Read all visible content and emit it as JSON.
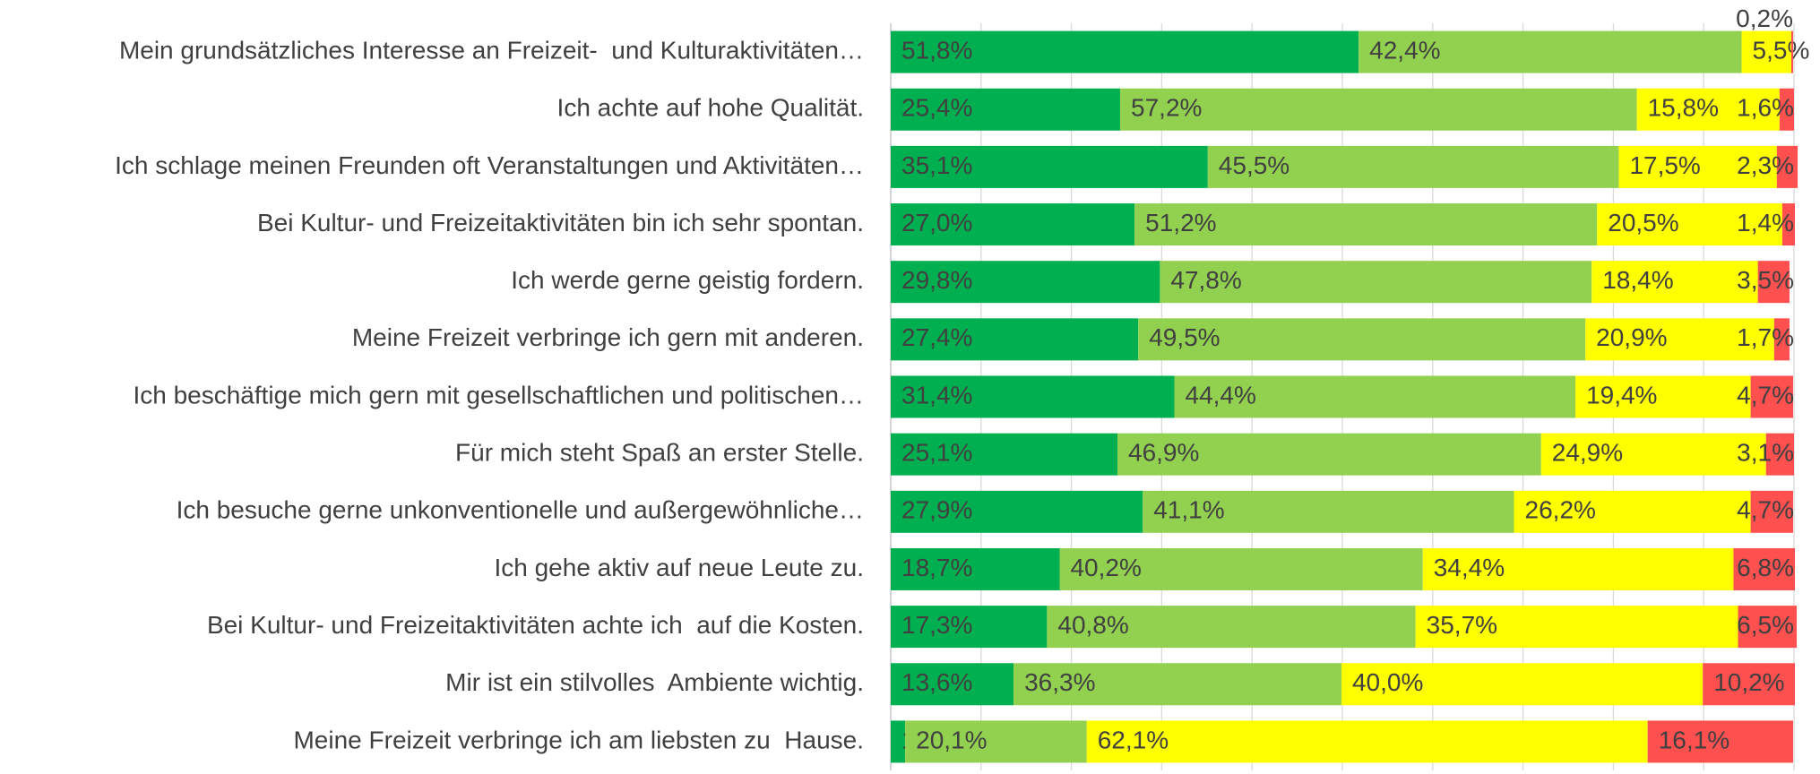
{
  "chart_data": {
    "type": "stacked-barh",
    "categories": [
      "Mein grundsätzliches Interesse an Freizeit-  und Kulturaktivitäten…",
      "Ich achte auf hohe Qualität.",
      "Ich schlage meinen Freunden oft Veranstaltungen und Aktivitäten…",
      "Bei Kultur- und Freizeitaktivitäten bin ich sehr spontan.",
      "Ich werde gerne geistig fordern.",
      "Meine Freizeit verbringe ich gern mit anderen.",
      "Ich beschäftige mich gern mit gesellschaftlichen und politischen…",
      "Für mich steht Spaß an erster Stelle.",
      "Ich besuche gerne unkonventionelle und außergewöhnliche…",
      "Ich gehe aktiv auf neue Leute zu.",
      "Bei Kultur- und Freizeitaktivitäten achte ich  auf die Kosten.",
      "Mir ist ein stilvolles  Ambiente wichtig.",
      "Meine Freizeit verbringe ich am liebsten zu  Hause."
    ],
    "series": [
      {
        "color": "#00b050",
        "values": [
          51.8,
          25.4,
          35.1,
          27.0,
          29.8,
          27.4,
          31.4,
          25.1,
          27.9,
          18.7,
          17.3,
          13.6,
          1.6
        ],
        "value_labels": [
          "51,8%",
          "25,4%",
          "35,1%",
          "27,0%",
          "29,8%",
          "27,4%",
          "31,4%",
          "25,1%",
          "27,9%",
          "18,7%",
          "17,3%",
          "13,6%",
          "1,6%"
        ]
      },
      {
        "color": "#92d050",
        "values": [
          42.4,
          57.2,
          45.5,
          51.2,
          47.8,
          49.5,
          44.4,
          46.9,
          41.1,
          40.2,
          40.8,
          36.3,
          20.1
        ],
        "value_labels": [
          "42,4%",
          "57,2%",
          "45,5%",
          "51,2%",
          "47,8%",
          "49,5%",
          "44,4%",
          "46,9%",
          "41,1%",
          "40,2%",
          "40,8%",
          "36,3%",
          "20,1%"
        ]
      },
      {
        "color": "#ffff00",
        "values": [
          5.5,
          15.8,
          17.5,
          20.5,
          18.4,
          20.9,
          19.4,
          24.9,
          26.2,
          34.4,
          35.7,
          40.0,
          62.1
        ],
        "value_labels": [
          "5,5%",
          "15,8%",
          "17,5%",
          "20,5%",
          "18,4%",
          "20,9%",
          "19,4%",
          "24,9%",
          "26,2%",
          "34,4%",
          "35,7%",
          "40,0%",
          "62,1%"
        ]
      },
      {
        "color": "#ff5050",
        "values": [
          0.2,
          1.6,
          2.3,
          1.4,
          3.5,
          1.7,
          4.7,
          3.1,
          4.7,
          6.8,
          6.5,
          10.2,
          16.1
        ],
        "value_labels": [
          "0,2%",
          "1,6%",
          "2,3%",
          "1,4%",
          "3,5%",
          "1,7%",
          "4,7%",
          "3,1%",
          "4,7%",
          "6,8%",
          "6,5%",
          "10,2%",
          "16,1%"
        ]
      }
    ],
    "xlim": [
      0,
      100
    ],
    "xticks": [
      0,
      10,
      20,
      30,
      40,
      50,
      60,
      70,
      80,
      90,
      100
    ],
    "grid": true
  }
}
